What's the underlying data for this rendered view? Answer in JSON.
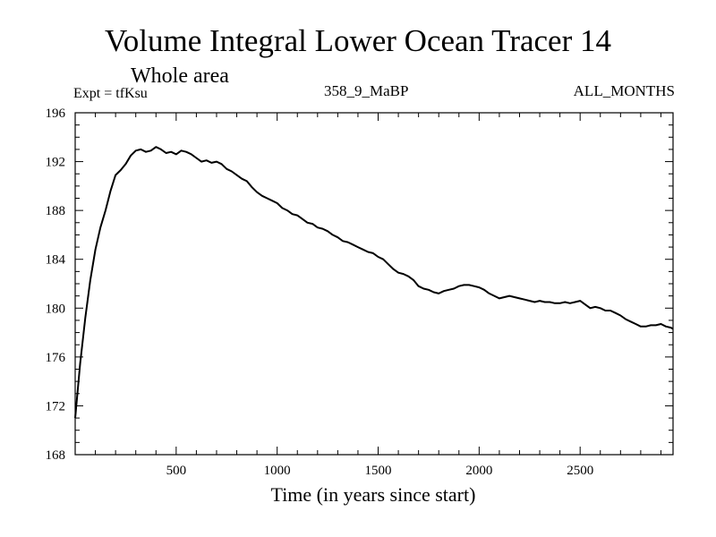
{
  "chart_data": {
    "type": "line",
    "title": "Volume Integral Lower Ocean Tracer 14",
    "subtitle": "Whole area",
    "experiment_label": "Expt = tfKsu",
    "experiment_name": "358_9_MaBP",
    "period": "ALL_MONTHS",
    "xlabel": "Time (in years since start)",
    "ylabel": "",
    "xlim": [
      0,
      2960
    ],
    "ylim": [
      168,
      196
    ],
    "x_ticks": [
      500,
      1000,
      1500,
      2000,
      2500
    ],
    "y_ticks": [
      168,
      172,
      176,
      180,
      184,
      188,
      192,
      196
    ],
    "x_minor_step": 100,
    "y_minor_step": 1,
    "grid": false,
    "series": [
      {
        "name": "tfKsu",
        "color": "#000000",
        "x": [
          0,
          25,
          50,
          75,
          100,
          125,
          150,
          175,
          200,
          225,
          250,
          275,
          300,
          325,
          350,
          375,
          400,
          425,
          450,
          475,
          500,
          525,
          550,
          575,
          600,
          625,
          650,
          675,
          700,
          725,
          750,
          775,
          800,
          825,
          850,
          875,
          900,
          925,
          950,
          975,
          1000,
          1025,
          1050,
          1075,
          1100,
          1125,
          1150,
          1175,
          1200,
          1225,
          1250,
          1275,
          1300,
          1325,
          1350,
          1375,
          1400,
          1425,
          1450,
          1475,
          1500,
          1525,
          1550,
          1575,
          1600,
          1625,
          1650,
          1675,
          1700,
          1725,
          1750,
          1775,
          1800,
          1825,
          1850,
          1875,
          1900,
          1925,
          1950,
          1975,
          2000,
          2025,
          2050,
          2075,
          2100,
          2125,
          2150,
          2175,
          2200,
          2225,
          2250,
          2275,
          2300,
          2325,
          2350,
          2375,
          2400,
          2425,
          2450,
          2475,
          2500,
          2525,
          2550,
          2575,
          2600,
          2625,
          2650,
          2675,
          2700,
          2725,
          2750,
          2775,
          2800,
          2825,
          2850,
          2875,
          2900,
          2925,
          2950,
          2960
        ],
        "y": [
          171.0,
          175.5,
          179.2,
          182.3,
          184.8,
          186.6,
          188.0,
          189.6,
          190.9,
          191.3,
          191.8,
          192.5,
          192.9,
          193.0,
          192.8,
          192.9,
          193.2,
          193.0,
          192.7,
          192.8,
          192.6,
          192.9,
          192.8,
          192.6,
          192.3,
          192.0,
          192.1,
          191.9,
          192.0,
          191.8,
          191.4,
          191.2,
          190.9,
          190.6,
          190.4,
          189.9,
          189.5,
          189.2,
          189.0,
          188.8,
          188.6,
          188.2,
          188.0,
          187.7,
          187.6,
          187.3,
          187.0,
          186.9,
          186.6,
          186.5,
          186.3,
          186.0,
          185.8,
          185.5,
          185.4,
          185.2,
          185.0,
          184.8,
          184.6,
          184.5,
          184.2,
          184.0,
          183.6,
          183.2,
          182.9,
          182.8,
          182.6,
          182.3,
          181.8,
          181.6,
          181.5,
          181.3,
          181.2,
          181.4,
          181.5,
          181.6,
          181.8,
          181.9,
          181.9,
          181.8,
          181.7,
          181.5,
          181.2,
          181.0,
          180.8,
          180.9,
          181.0,
          180.9,
          180.8,
          180.7,
          180.6,
          180.5,
          180.6,
          180.5,
          180.5,
          180.4,
          180.4,
          180.5,
          180.4,
          180.5,
          180.6,
          180.3,
          180.0,
          180.1,
          180.0,
          179.8,
          179.8,
          179.6,
          179.4,
          179.1,
          178.9,
          178.7,
          178.5,
          178.5,
          178.6,
          178.6,
          178.7,
          178.5,
          178.4,
          178.3
        ]
      }
    ]
  }
}
